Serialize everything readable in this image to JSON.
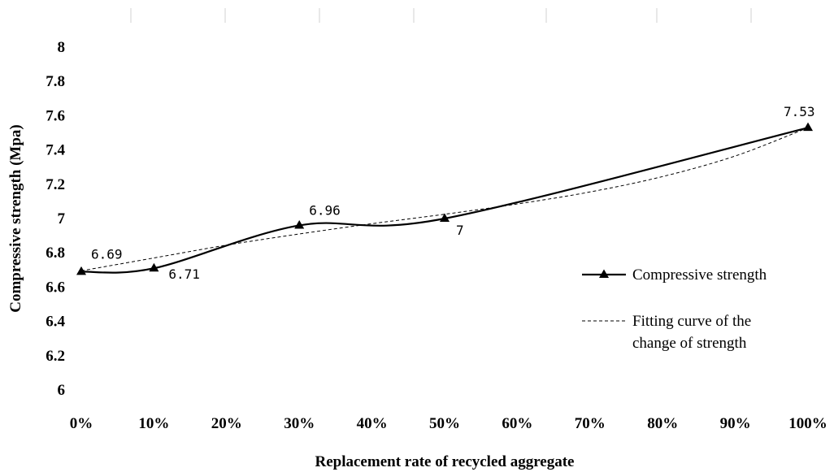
{
  "chart_data": {
    "type": "line",
    "xlabel": "Replacement rate of recycled aggregate",
    "ylabel": "Compressive strength  (Mpa)",
    "ylim": [
      6,
      8
    ],
    "yticks": [
      "6",
      "6.2",
      "6.4",
      "6.6",
      "6.8",
      "7",
      "7.2",
      "7.4",
      "7.6",
      "7.8",
      "8"
    ],
    "xlim": [
      0,
      100
    ],
    "xticks": [
      "0%",
      "10%",
      "20%",
      "30%",
      "40%",
      "50%",
      "60%",
      "70%",
      "80%",
      "90%",
      "100%"
    ],
    "grid": false,
    "legend_position": "right",
    "series": [
      {
        "name": "Compressive strength",
        "style": "solid",
        "marker": "triangle",
        "color": "#000000",
        "x": [
          0,
          10,
          30,
          50,
          100
        ],
        "y": [
          6.69,
          6.71,
          6.96,
          7,
          7.53
        ],
        "labels": [
          "6.69",
          "6.71",
          "6.96",
          "7",
          "7.53"
        ]
      },
      {
        "name": "Fitting curve of the change of strength",
        "name_lines": [
          "Fitting curve of the",
          "change of strength"
        ],
        "style": "dashed",
        "color": "#000000",
        "x": [
          0,
          10,
          20,
          30,
          40,
          50,
          60,
          70,
          80,
          90,
          100
        ],
        "y": [
          6.695,
          6.77,
          6.845,
          6.91,
          6.97,
          7.025,
          7.085,
          7.155,
          7.245,
          7.365,
          7.53
        ]
      }
    ]
  }
}
